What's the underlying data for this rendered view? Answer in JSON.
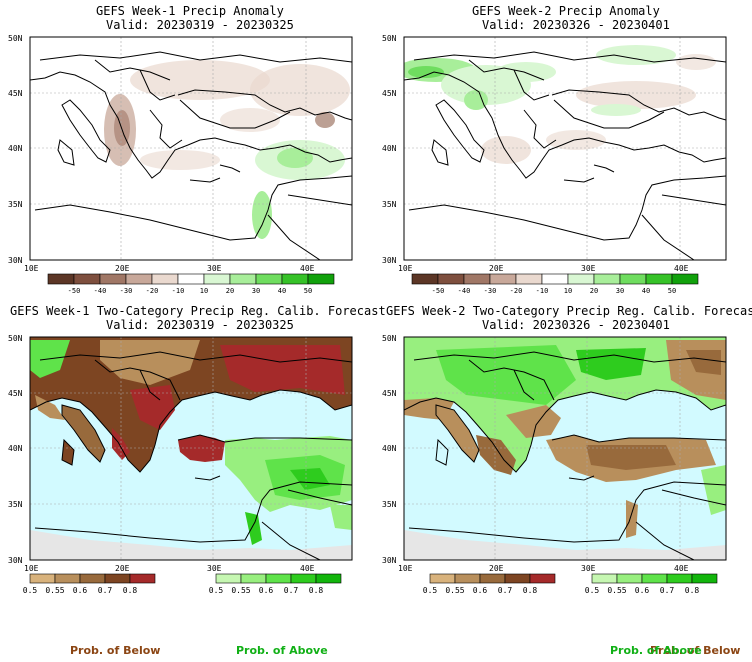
{
  "panels": [
    {
      "kind": "anomaly",
      "title": "GEFS Week-1 Precip Anomaly",
      "valid": "Valid: 20230319 - 20230325"
    },
    {
      "kind": "anomaly",
      "title": "GEFS Week-2 Precip Anomaly",
      "valid": "Valid: 20230326 - 20230401"
    },
    {
      "kind": "probability",
      "title": "GEFS Week-1 Two-Category Precip Reg. Calib. Forecast",
      "valid": "Valid: 20230319 - 20230325"
    },
    {
      "kind": "probability",
      "title": "GEFS Week-2 Two-Category Precip Reg. Calib. Forecast",
      "valid": "Valid: 20230326 - 20230401"
    }
  ],
  "map_axes": {
    "lat_labels": [
      "50N",
      "45N",
      "40N",
      "35N",
      "30N"
    ],
    "lon_labels": [
      "10E",
      "20E",
      "30E",
      "40E"
    ]
  },
  "anomaly_colorbar": {
    "labels": [
      "-50",
      "-40",
      "-30",
      "-20",
      "-10",
      "10",
      "20",
      "30",
      "40",
      "50"
    ],
    "colors": [
      "#5c3626",
      "#7e4f3e",
      "#a07766",
      "#c8a89a",
      "#ead9cf",
      "#ffffff",
      "#d9f7d3",
      "#a8ee9a",
      "#6fdd5f",
      "#36c228",
      "#11a10c"
    ]
  },
  "probability_colorbars": {
    "below": {
      "labels": [
        "0.5",
        "0.55",
        "0.6",
        "0.7",
        "0.8"
      ],
      "colors": [
        "#d8b27c",
        "#b88f5c",
        "#986a3c",
        "#7d4522",
        "#a52a2a"
      ],
      "caption": "Prob. of Below",
      "caption_color": "#8b4513"
    },
    "above": {
      "labels": [
        "0.5",
        "0.55",
        "0.6",
        "0.7",
        "0.8"
      ],
      "colors": [
        "#c6f7b2",
        "#98ef7f",
        "#5fe34a",
        "#2ecc1e",
        "#12b50c"
      ],
      "caption": "Prob. of Above",
      "caption_color": "#11b016"
    }
  },
  "map_colors": {
    "sea": "#d2faff",
    "no_data": "#e6e6e6",
    "grid": "#a9a9a9"
  }
}
